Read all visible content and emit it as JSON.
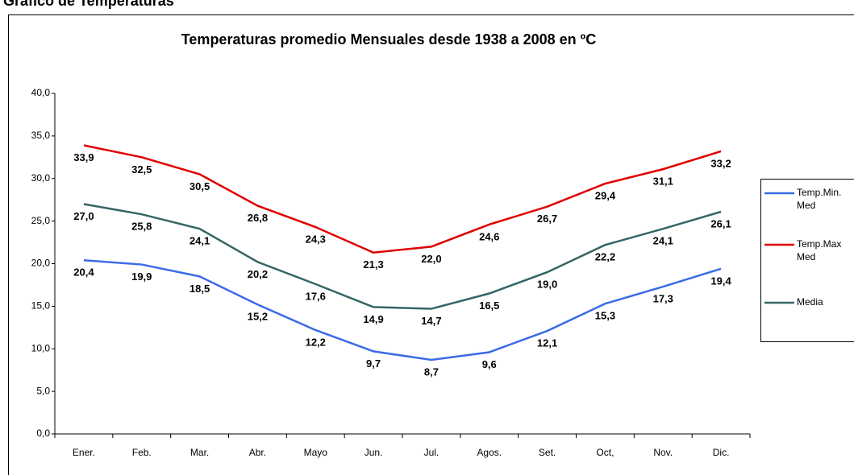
{
  "page_title": "Gráfico de Temperaturas",
  "chart_data": {
    "type": "line",
    "title": "Temperaturas promedio Mensuales desde 1938 a 2008 en ºC",
    "categories": [
      "Ener.",
      "Feb.",
      "Mar.",
      "Abr.",
      "Mayo",
      "Jun.",
      "Jul.",
      "Agos.",
      "Set.",
      "Oct,",
      "Nov.",
      "Dic."
    ],
    "series": [
      {
        "name": "Temp.Min. Med",
        "color": "#3b6be6",
        "values": [
          20.4,
          19.9,
          18.5,
          15.2,
          12.2,
          9.7,
          8.7,
          9.6,
          12.1,
          15.3,
          17.3,
          19.4
        ],
        "value_labels": [
          "20,4",
          "19,9",
          "18,5",
          "15,2",
          "12,2",
          "9,7",
          "8,7",
          "9,6",
          "12,1",
          "15,3",
          "17,3",
          "19,4"
        ]
      },
      {
        "name": "Temp.Max Med",
        "color": "#e00000",
        "values": [
          33.9,
          32.5,
          30.5,
          26.8,
          24.3,
          21.3,
          22.0,
          24.6,
          26.7,
          29.4,
          31.1,
          33.2
        ],
        "value_labels": [
          "33,9",
          "32,5",
          "30,5",
          "26,8",
          "24,3",
          "21,3",
          "22,0",
          "24,6",
          "26,7",
          "29,4",
          "31,1",
          "33,2"
        ]
      },
      {
        "name": "Media",
        "color": "#336666",
        "values": [
          27.0,
          25.8,
          24.1,
          20.2,
          17.6,
          14.9,
          14.7,
          16.5,
          19.0,
          22.2,
          24.1,
          26.1
        ],
        "value_labels": [
          "27,0",
          "25,8",
          "24,1",
          "20,2",
          "17,6",
          "14,9",
          "14,7",
          "16,5",
          "19,0",
          "22,2",
          "24,1",
          "26,1"
        ]
      }
    ],
    "ylim": [
      0,
      40
    ],
    "yticks": [
      {
        "value": 0,
        "label": "0,0"
      },
      {
        "value": 5,
        "label": "5,0"
      },
      {
        "value": 10,
        "label": "10,0"
      },
      {
        "value": 15,
        "label": "15,0"
      },
      {
        "value": 20,
        "label": "20,0"
      },
      {
        "value": 25,
        "label": "25,0"
      },
      {
        "value": 30,
        "label": "30,0"
      },
      {
        "value": 35,
        "label": "35,0"
      },
      {
        "value": 40,
        "label": "40,0"
      }
    ],
    "grid": false,
    "legend": "right"
  }
}
